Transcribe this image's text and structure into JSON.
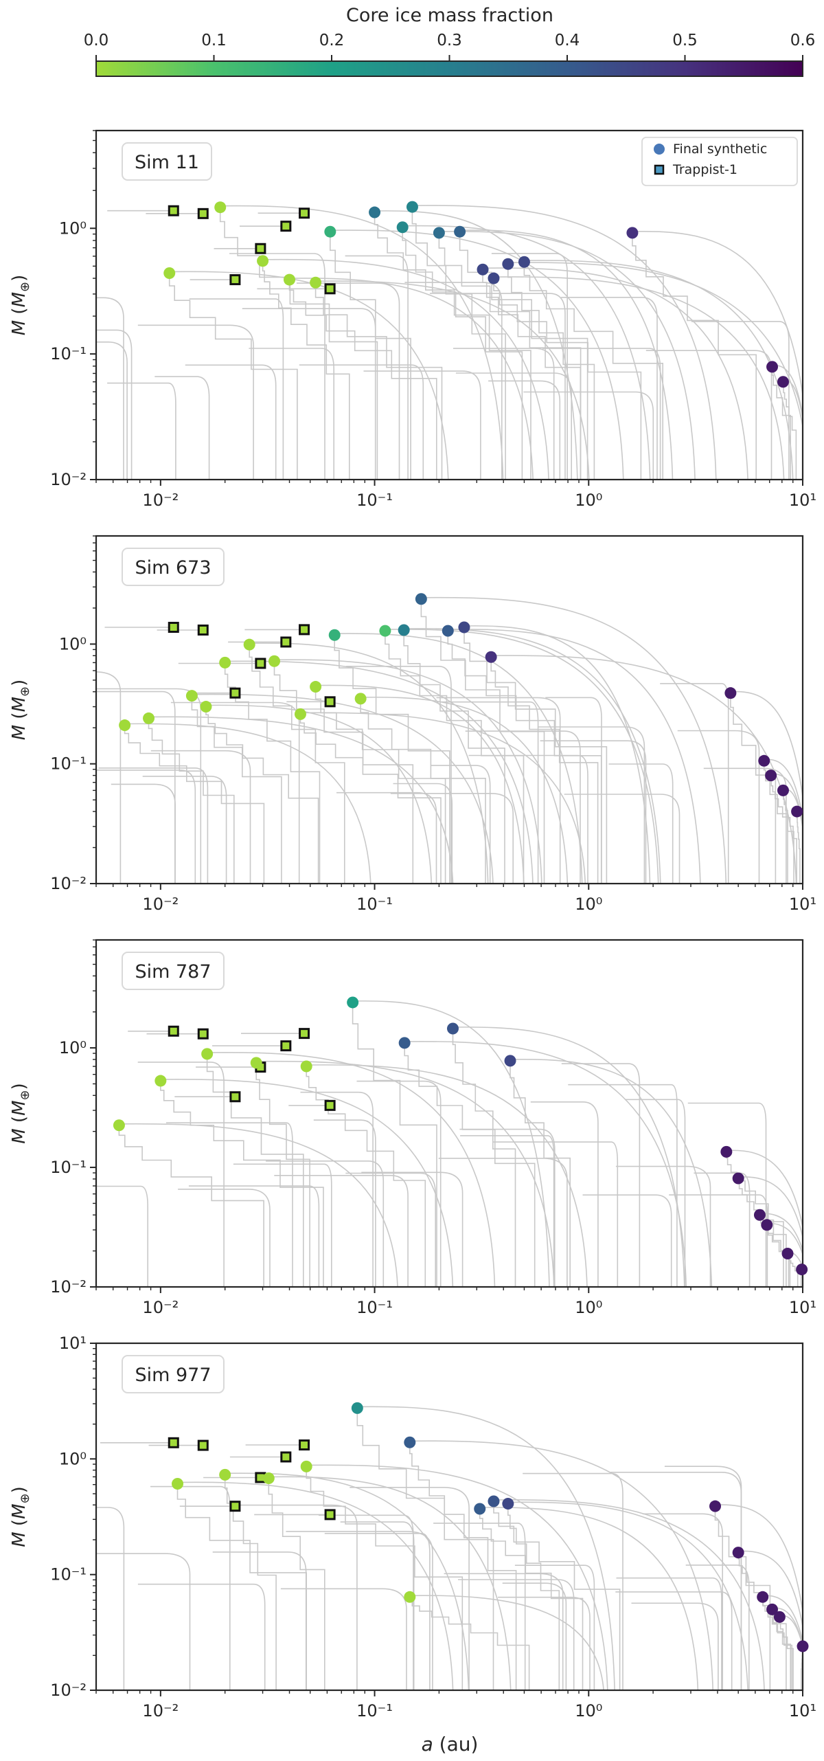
{
  "colorbar": {
    "label": "Core ice mass fraction",
    "ticks": [
      "0.0",
      "0.1",
      "0.2",
      "0.3",
      "0.4",
      "0.5",
      "0.6"
    ],
    "range": [
      0.0,
      0.6
    ],
    "colors": [
      "#a0da39",
      "#4ac16d",
      "#1fa187",
      "#277f8e",
      "#365c8d",
      "#46327e",
      "#440154"
    ]
  },
  "legend": {
    "final": "Final synthetic",
    "trappist": "Trappist-1"
  },
  "shared": {
    "ylabel": "M (M⊕)",
    "xlabel": "a (au)",
    "xlim": [
      0.005,
      10
    ],
    "xticks": [
      {
        "v": 0.01,
        "t": "10⁻²"
      },
      {
        "v": 0.1,
        "t": "10⁻¹"
      },
      {
        "v": 1,
        "t": "10⁰"
      },
      {
        "v": 10,
        "t": "10¹"
      }
    ],
    "trail_color": "#c8c8c8",
    "trappist_fill": "#a0da39"
  },
  "chart_data": [
    {
      "type": "scatter",
      "title": "Sim 11",
      "xlabel": "",
      "ylabel": "M (M⊕)",
      "xlim": [
        0.005,
        10
      ],
      "ylim": [
        0.01,
        6
      ],
      "yticks": [
        {
          "v": 0.01,
          "t": "10⁻²"
        },
        {
          "v": 0.1,
          "t": "10⁻¹"
        },
        {
          "v": 1,
          "t": "10⁰"
        }
      ],
      "trappist": [
        [
          0.0115,
          1.38
        ],
        [
          0.0158,
          1.31
        ],
        [
          0.0223,
          0.39
        ],
        [
          0.0293,
          0.69
        ],
        [
          0.0385,
          1.04
        ],
        [
          0.0469,
          1.32
        ],
        [
          0.0619,
          0.33
        ]
      ],
      "planets": [
        [
          0.011,
          0.44,
          0.0
        ],
        [
          0.019,
          1.47,
          0.0
        ],
        [
          0.03,
          0.55,
          0.0
        ],
        [
          0.04,
          0.39,
          0.0
        ],
        [
          0.053,
          0.37,
          0.0
        ],
        [
          0.062,
          0.94,
          0.15
        ],
        [
          0.1,
          1.34,
          0.33
        ],
        [
          0.135,
          1.02,
          0.27
        ],
        [
          0.15,
          1.48,
          0.28
        ],
        [
          0.2,
          0.92,
          0.35
        ],
        [
          0.25,
          0.94,
          0.38
        ],
        [
          0.32,
          0.47,
          0.45
        ],
        [
          0.36,
          0.4,
          0.45
        ],
        [
          0.42,
          0.52,
          0.45
        ],
        [
          0.5,
          0.54,
          0.45
        ],
        [
          1.6,
          0.92,
          0.5
        ],
        [
          7.2,
          0.079,
          0.55
        ],
        [
          8.1,
          0.06,
          0.55
        ]
      ]
    },
    {
      "type": "scatter",
      "title": "Sim 673",
      "xlabel": "",
      "ylabel": "M (M⊕)",
      "xlim": [
        0.005,
        10
      ],
      "ylim": [
        0.01,
        8
      ],
      "yticks": [
        {
          "v": 0.01,
          "t": "10⁻²"
        },
        {
          "v": 0.1,
          "t": "10⁻¹"
        },
        {
          "v": 1,
          "t": "10⁰"
        }
      ],
      "trappist": [
        [
          0.0115,
          1.38
        ],
        [
          0.0158,
          1.31
        ],
        [
          0.0223,
          0.39
        ],
        [
          0.0293,
          0.69
        ],
        [
          0.0385,
          1.04
        ],
        [
          0.0469,
          1.32
        ],
        [
          0.0619,
          0.33
        ]
      ],
      "planets": [
        [
          0.0068,
          0.21,
          0.0
        ],
        [
          0.0088,
          0.24,
          0.0
        ],
        [
          0.014,
          0.37,
          0.0
        ],
        [
          0.0163,
          0.3,
          0.0
        ],
        [
          0.02,
          0.7,
          0.0
        ],
        [
          0.026,
          0.99,
          0.0
        ],
        [
          0.034,
          0.72,
          0.0
        ],
        [
          0.045,
          0.26,
          0.0
        ],
        [
          0.053,
          0.44,
          0.0
        ],
        [
          0.086,
          0.35,
          0.0
        ],
        [
          0.065,
          1.19,
          0.15
        ],
        [
          0.112,
          1.29,
          0.1
        ],
        [
          0.137,
          1.31,
          0.3
        ],
        [
          0.165,
          2.38,
          0.38
        ],
        [
          0.22,
          1.29,
          0.4
        ],
        [
          0.262,
          1.38,
          0.45
        ],
        [
          0.35,
          0.78,
          0.5
        ],
        [
          4.6,
          0.39,
          0.55
        ],
        [
          6.6,
          0.106,
          0.55
        ],
        [
          7.1,
          0.08,
          0.55
        ],
        [
          8.1,
          0.06,
          0.55
        ],
        [
          9.4,
          0.04,
          0.55
        ]
      ]
    },
    {
      "type": "scatter",
      "title": "Sim 787",
      "xlabel": "",
      "ylabel": "M (M⊕)",
      "xlim": [
        0.005,
        10
      ],
      "ylim": [
        0.01,
        8
      ],
      "yticks": [
        {
          "v": 0.01,
          "t": "10⁻²"
        },
        {
          "v": 0.1,
          "t": "10⁻¹"
        },
        {
          "v": 1,
          "t": "10⁰"
        }
      ],
      "trappist": [
        [
          0.0115,
          1.38
        ],
        [
          0.0158,
          1.31
        ],
        [
          0.0223,
          0.39
        ],
        [
          0.0293,
          0.69
        ],
        [
          0.0385,
          1.04
        ],
        [
          0.0469,
          1.32
        ],
        [
          0.0619,
          0.33
        ]
      ],
      "planets": [
        [
          0.0064,
          0.225,
          0.0
        ],
        [
          0.01,
          0.53,
          0.0
        ],
        [
          0.0165,
          0.89,
          0.0
        ],
        [
          0.028,
          0.75,
          0.0
        ],
        [
          0.048,
          0.7,
          0.0
        ],
        [
          0.079,
          2.4,
          0.2
        ],
        [
          0.138,
          1.1,
          0.4
        ],
        [
          0.232,
          1.45,
          0.42
        ],
        [
          0.43,
          0.78,
          0.45
        ],
        [
          4.4,
          0.135,
          0.55
        ],
        [
          5.0,
          0.081,
          0.55
        ],
        [
          6.3,
          0.04,
          0.55
        ],
        [
          6.8,
          0.033,
          0.55
        ],
        [
          8.5,
          0.019,
          0.55
        ],
        [
          9.9,
          0.014,
          0.55
        ]
      ]
    },
    {
      "type": "scatter",
      "title": "Sim 977",
      "xlabel": "a (au)",
      "ylabel": "M (M⊕)",
      "xlim": [
        0.005,
        10
      ],
      "ylim": [
        0.01,
        10
      ],
      "yticks": [
        {
          "v": 0.01,
          "t": "10⁻²"
        },
        {
          "v": 0.1,
          "t": "10⁻¹"
        },
        {
          "v": 1,
          "t": "10⁰"
        },
        {
          "v": 10,
          "t": "10¹"
        }
      ],
      "trappist": [
        [
          0.0115,
          1.38
        ],
        [
          0.0158,
          1.31
        ],
        [
          0.0223,
          0.39
        ],
        [
          0.0293,
          0.69
        ],
        [
          0.0385,
          1.04
        ],
        [
          0.0469,
          1.32
        ],
        [
          0.0619,
          0.33
        ]
      ],
      "planets": [
        [
          0.012,
          0.61,
          0.0
        ],
        [
          0.02,
          0.73,
          0.0
        ],
        [
          0.032,
          0.68,
          0.0
        ],
        [
          0.048,
          0.86,
          0.0
        ],
        [
          0.146,
          0.064,
          0.0
        ],
        [
          0.083,
          2.75,
          0.25
        ],
        [
          0.146,
          1.39,
          0.4
        ],
        [
          0.31,
          0.37,
          0.4
        ],
        [
          0.36,
          0.43,
          0.42
        ],
        [
          0.42,
          0.41,
          0.45
        ],
        [
          3.9,
          0.39,
          0.55
        ],
        [
          5.0,
          0.155,
          0.55
        ],
        [
          6.5,
          0.064,
          0.55
        ],
        [
          7.2,
          0.05,
          0.55
        ],
        [
          7.8,
          0.043,
          0.55
        ],
        [
          10.0,
          0.024,
          0.55
        ]
      ]
    }
  ]
}
